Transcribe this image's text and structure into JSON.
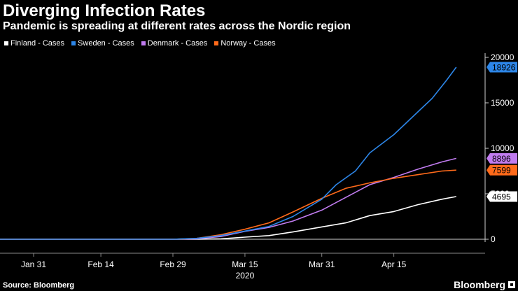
{
  "header": {
    "title": "Diverging Infection Rates",
    "subtitle": "Pandemic is spreading at different rates across the Nordic region"
  },
  "legend": [
    {
      "label": "Finland - Cases",
      "color": "#ffffff"
    },
    {
      "label": "Sweden - Cases",
      "color": "#2d86e8"
    },
    {
      "label": "Denmark - Cases",
      "color": "#c17cf0"
    },
    {
      "label": "Norway - Cases",
      "color": "#ff6a1a"
    }
  ],
  "footer": {
    "source": "Source: Bloomberg",
    "logo": "Bloomberg"
  },
  "chart_data": {
    "type": "line",
    "x_ticks": [
      {
        "date": "2020-01-31",
        "label": "Jan 31"
      },
      {
        "date": "2020-02-14",
        "label": "Feb 14"
      },
      {
        "date": "2020-02-29",
        "label": "Feb 29"
      },
      {
        "date": "2020-03-15",
        "label": "Mar 15"
      },
      {
        "date": "2020-03-31",
        "label": "Mar 31"
      },
      {
        "date": "2020-04-15",
        "label": "Apr 15"
      }
    ],
    "year_label": "2020",
    "y_ticks": [
      0,
      5000,
      10000,
      15000,
      20000
    ],
    "ylim": [
      0,
      20000
    ],
    "xlim": [
      "2020-01-24",
      "2020-05-04"
    ],
    "grid": false,
    "series": [
      {
        "name": "Finland - Cases",
        "color": "#ffffff",
        "end_label": "4695",
        "points": [
          [
            "2020-01-24",
            0
          ],
          [
            "2020-02-29",
            0
          ],
          [
            "2020-03-05",
            10
          ],
          [
            "2020-03-10",
            50
          ],
          [
            "2020-03-15",
            230
          ],
          [
            "2020-03-20",
            400
          ],
          [
            "2020-03-25",
            800
          ],
          [
            "2020-03-31",
            1350
          ],
          [
            "2020-04-05",
            1800
          ],
          [
            "2020-04-10",
            2600
          ],
          [
            "2020-04-15",
            3050
          ],
          [
            "2020-04-20",
            3800
          ],
          [
            "2020-04-25",
            4400
          ],
          [
            "2020-04-28",
            4695
          ]
        ]
      },
      {
        "name": "Sweden - Cases",
        "color": "#2d86e8",
        "end_label": "18926",
        "points": [
          [
            "2020-01-24",
            0
          ],
          [
            "2020-02-29",
            0
          ],
          [
            "2020-03-05",
            100
          ],
          [
            "2020-03-10",
            400
          ],
          [
            "2020-03-15",
            900
          ],
          [
            "2020-03-20",
            1400
          ],
          [
            "2020-03-25",
            2500
          ],
          [
            "2020-03-31",
            4400
          ],
          [
            "2020-04-03",
            6000
          ],
          [
            "2020-04-07",
            7500
          ],
          [
            "2020-04-10",
            9500
          ],
          [
            "2020-04-15",
            11500
          ],
          [
            "2020-04-20",
            14000
          ],
          [
            "2020-04-23",
            15500
          ],
          [
            "2020-04-26",
            17500
          ],
          [
            "2020-04-28",
            18926
          ]
        ]
      },
      {
        "name": "Denmark - Cases",
        "color": "#c17cf0",
        "end_label": "8896",
        "points": [
          [
            "2020-01-24",
            0
          ],
          [
            "2020-02-29",
            0
          ],
          [
            "2020-03-05",
            50
          ],
          [
            "2020-03-10",
            300
          ],
          [
            "2020-03-15",
            870
          ],
          [
            "2020-03-20",
            1300
          ],
          [
            "2020-03-25",
            2000
          ],
          [
            "2020-03-31",
            3200
          ],
          [
            "2020-04-05",
            4600
          ],
          [
            "2020-04-10",
            6000
          ],
          [
            "2020-04-15",
            6800
          ],
          [
            "2020-04-20",
            7700
          ],
          [
            "2020-04-25",
            8500
          ],
          [
            "2020-04-28",
            8896
          ]
        ]
      },
      {
        "name": "Norway - Cases",
        "color": "#ff6a1a",
        "end_label": "7599",
        "points": [
          [
            "2020-01-24",
            0
          ],
          [
            "2020-02-29",
            0
          ],
          [
            "2020-03-05",
            100
          ],
          [
            "2020-03-10",
            500
          ],
          [
            "2020-03-15",
            1100
          ],
          [
            "2020-03-20",
            1800
          ],
          [
            "2020-03-25",
            3000
          ],
          [
            "2020-03-31",
            4500
          ],
          [
            "2020-04-05",
            5600
          ],
          [
            "2020-04-10",
            6200
          ],
          [
            "2020-04-15",
            6700
          ],
          [
            "2020-04-20",
            7100
          ],
          [
            "2020-04-25",
            7500
          ],
          [
            "2020-04-28",
            7599
          ]
        ]
      }
    ]
  }
}
